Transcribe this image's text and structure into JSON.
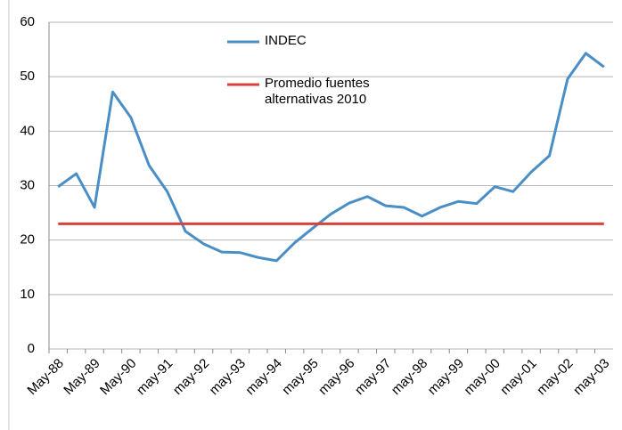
{
  "chart_data": {
    "type": "line",
    "categories": [
      "May-88",
      null,
      "May-89",
      null,
      "May-90",
      null,
      "may-91",
      null,
      "may-92",
      null,
      "may-93",
      null,
      "may-94",
      null,
      "may-95",
      null,
      "may-96",
      null,
      "may-97",
      null,
      "may-98",
      null,
      "may-99",
      null,
      "may-00",
      null,
      "may-01",
      null,
      "may-02",
      null,
      "may-03"
    ],
    "series": [
      {
        "name": "INDEC",
        "color": "#4a8ec6",
        "values": [
          29.8,
          32.2,
          26,
          47.2,
          42.5,
          33.7,
          28.9,
          21.6,
          19.3,
          17.8,
          17.7,
          16.8,
          16.2,
          19.5,
          22.2,
          24.8,
          26.8,
          28,
          26.3,
          26,
          24.4,
          26,
          27.1,
          26.7,
          29.8,
          28.9,
          32.5,
          35.5,
          49.6,
          54.3,
          51.8
        ]
      },
      {
        "name": "Promedio fuentes alternativas 2010",
        "color": "#d9413c",
        "values": [
          23,
          23,
          23,
          23,
          23,
          23,
          23,
          23,
          23,
          23,
          23,
          23,
          23,
          23,
          23,
          23,
          23,
          23,
          23,
          23,
          23,
          23,
          23,
          23,
          23,
          23,
          23,
          23,
          23,
          23,
          23
        ]
      }
    ],
    "ylim": [
      0,
      60
    ],
    "yticks": [
      0,
      10,
      20,
      30,
      40,
      50,
      60
    ],
    "grid": true,
    "legend": "top"
  }
}
